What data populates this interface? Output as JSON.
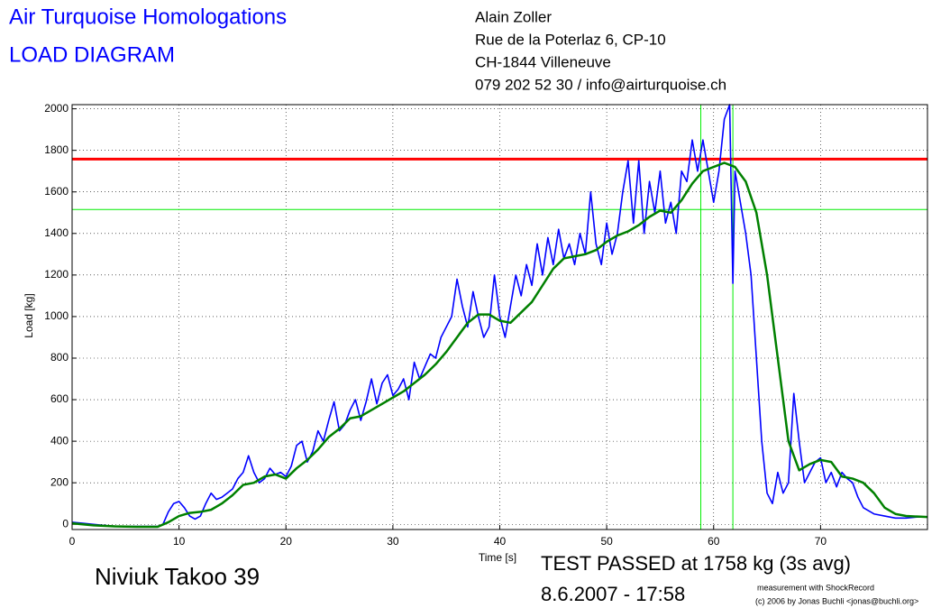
{
  "chart_data": {
    "type": "line",
    "title": "Air Turquoise Homologations",
    "subtitle": "LOAD DIAGRAM",
    "address": [
      "Alain Zoller",
      "Rue de la Poterlaz 6, CP-10",
      "CH-1844 Villeneuve",
      "079 202 52 30 / info@airturquoise.ch"
    ],
    "glider": "Niviuk Takoo 39",
    "result": "TEST PASSED at 1758 kg (3s avg)",
    "date": "8.6.2007 - 17:58",
    "credits": [
      "measurement with ShockRecord",
      "(c) 2006 by Jonas Buchli <jonas@buchli.org>"
    ],
    "xlabel": "Time [s]",
    "ylabel": "Load [kg]",
    "xlim": [
      0,
      80
    ],
    "ylim": [
      -25,
      2020
    ],
    "xticks": [
      0,
      10,
      20,
      30,
      40,
      50,
      60,
      70
    ],
    "yticks": [
      0,
      200,
      400,
      600,
      800,
      1000,
      1200,
      1400,
      1600,
      1800,
      2000
    ],
    "grid": true,
    "series": [
      {
        "color": "#0000ff",
        "x": [
          0,
          1,
          2,
          3,
          4,
          5,
          6,
          7,
          8,
          8.5,
          9,
          9.5,
          10,
          10.5,
          11,
          11.5,
          12,
          12.5,
          13,
          13.5,
          14,
          14.5,
          15,
          15.5,
          16,
          16.5,
          17,
          17.5,
          18,
          18.5,
          19,
          19.5,
          20,
          20.5,
          21,
          21.5,
          22,
          22.5,
          23,
          23.5,
          24,
          24.5,
          25,
          25.5,
          26,
          26.5,
          27,
          27.5,
          28,
          28.5,
          29,
          29.5,
          30,
          30.5,
          31,
          31.5,
          32,
          32.5,
          33,
          33.5,
          34,
          34.5,
          35,
          35.5,
          36,
          36.5,
          37,
          37.5,
          38,
          38.5,
          39,
          39.5,
          40,
          40.5,
          41,
          41.5,
          42,
          42.5,
          43,
          43.5,
          44,
          44.5,
          45,
          45.5,
          46,
          46.5,
          47,
          47.5,
          48,
          48.5,
          49,
          49.5,
          50,
          50.5,
          51,
          51.5,
          52,
          52.5,
          53,
          53.5,
          54,
          54.5,
          55,
          55.5,
          56,
          56.5,
          57,
          57.5,
          58,
          58.5,
          59,
          59.5,
          60,
          60.5,
          61,
          61.5,
          61.8,
          62,
          62.5,
          63,
          63.5,
          64,
          64.5,
          65,
          65.5,
          66,
          66.5,
          67,
          67.5,
          68,
          68.5,
          69,
          69.5,
          70,
          70.5,
          71,
          71.5,
          72,
          72.5,
          73,
          73.5,
          74,
          75,
          76,
          77,
          78,
          79,
          80
        ],
        "values": [
          10,
          5,
          0,
          -5,
          -10,
          -10,
          -10,
          -10,
          -10,
          0,
          60,
          100,
          110,
          80,
          40,
          25,
          40,
          100,
          150,
          120,
          130,
          150,
          170,
          220,
          250,
          330,
          250,
          200,
          220,
          270,
          240,
          250,
          230,
          280,
          380,
          400,
          300,
          350,
          450,
          400,
          500,
          590,
          450,
          480,
          550,
          600,
          500,
          590,
          700,
          580,
          680,
          720,
          620,
          650,
          700,
          600,
          780,
          700,
          760,
          820,
          800,
          900,
          950,
          1000,
          1180,
          1050,
          950,
          1120,
          1000,
          900,
          950,
          1200,
          1000,
          900,
          1050,
          1200,
          1100,
          1250,
          1150,
          1350,
          1200,
          1380,
          1250,
          1420,
          1280,
          1350,
          1250,
          1400,
          1300,
          1600,
          1350,
          1250,
          1450,
          1300,
          1400,
          1600,
          1750,
          1450,
          1750,
          1400,
          1650,
          1500,
          1700,
          1450,
          1550,
          1400,
          1700,
          1650,
          1850,
          1700,
          1850,
          1700,
          1550,
          1700,
          1950,
          2020,
          1160,
          1700,
          1550,
          1400,
          1200,
          800,
          400,
          150,
          100,
          250,
          150,
          200,
          630,
          400,
          200,
          250,
          300,
          320,
          200,
          250,
          180,
          250,
          220,
          200,
          130,
          80,
          50,
          40,
          30,
          30,
          35,
          35
        ]
      },
      {
        "color": "#008000",
        "x": [
          0,
          2,
          4,
          6,
          8,
          9,
          10,
          11,
          12,
          13,
          14,
          15,
          16,
          17,
          18,
          19,
          20,
          21,
          22,
          23,
          24,
          25,
          26,
          27,
          28,
          29,
          30,
          31,
          32,
          33,
          34,
          35,
          36,
          37,
          38,
          39,
          40,
          41,
          42,
          43,
          44,
          45,
          46,
          47,
          48,
          49,
          50,
          51,
          52,
          53,
          54,
          55,
          56,
          57,
          58,
          59,
          60,
          61,
          62,
          63,
          64,
          65,
          66,
          67,
          68,
          69,
          70,
          71,
          72,
          73,
          74,
          75,
          76,
          77,
          78,
          80
        ],
        "values": [
          5,
          -5,
          -10,
          -12,
          -12,
          10,
          40,
          55,
          60,
          70,
          100,
          140,
          190,
          200,
          230,
          240,
          220,
          270,
          310,
          360,
          420,
          460,
          510,
          520,
          550,
          580,
          610,
          640,
          680,
          720,
          770,
          830,
          900,
          970,
          1010,
          1010,
          980,
          970,
          1020,
          1070,
          1150,
          1230,
          1280,
          1290,
          1300,
          1320,
          1360,
          1390,
          1410,
          1440,
          1480,
          1510,
          1500,
          1560,
          1640,
          1700,
          1720,
          1740,
          1720,
          1650,
          1500,
          1200,
          800,
          400,
          260,
          290,
          310,
          300,
          230,
          220,
          200,
          150,
          80,
          50,
          40,
          35
        ]
      }
    ],
    "hlines": [
      {
        "y": 1758,
        "color": "#ff0000"
      },
      {
        "y": 1515,
        "color": "#00ee00"
      }
    ],
    "vlines": [
      {
        "x": 58.8,
        "color": "#00ee00"
      },
      {
        "x": 61.8,
        "color": "#00ee00"
      }
    ]
  }
}
